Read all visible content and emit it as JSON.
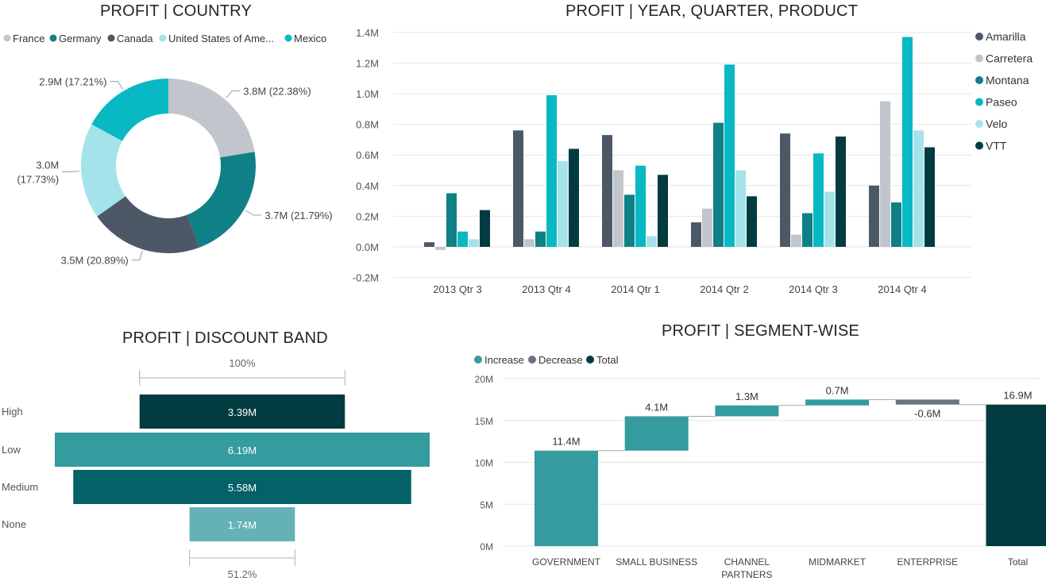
{
  "chart_data": [
    {
      "id": "donut",
      "type": "pie",
      "title": "PROFIT | COUNTRY",
      "legend_position": "top",
      "legend": [
        "France",
        "Germany",
        "Canada",
        "United States of Ame...",
        "Mexico"
      ],
      "slices": [
        {
          "name": "France",
          "value": 3.8,
          "label": "3.8M (22.38%)",
          "color": "#c1c6cc"
        },
        {
          "name": "Germany",
          "value": 3.7,
          "label": "3.7M (21.79%)",
          "color": "#0f8086"
        },
        {
          "name": "Canada",
          "value": 3.55,
          "label": "3.5M (20.89%)",
          "color": "#4d5866"
        },
        {
          "name": "United States of America",
          "value": 3.0,
          "label_lines": [
            "3.0M",
            "(17.73%)"
          ],
          "color": "#a5e3ea"
        },
        {
          "name": "Mexico",
          "value": 2.9,
          "label": "2.9M (17.21%)",
          "color": "#08b8c2"
        }
      ]
    },
    {
      "id": "columns",
      "type": "bar",
      "title": "PROFIT | YEAR, QUARTER, PRODUCT",
      "grid": true,
      "legend_position": "right",
      "ylim": [
        -0.2,
        1.4
      ],
      "yticks": [
        -0.2,
        0,
        0.2,
        0.4,
        0.6,
        0.8,
        1.0,
        1.2,
        1.4
      ],
      "ytick_labels": [
        "-0.2M",
        "0.0M",
        "0.2M",
        "0.4M",
        "0.6M",
        "0.8M",
        "1.0M",
        "1.2M",
        "1.4M"
      ],
      "categories": [
        "2013 Qtr 3",
        "2013 Qtr 4",
        "2014 Qtr 1",
        "2014 Qtr 2",
        "2014 Qtr 3",
        "2014 Qtr 4"
      ],
      "series": [
        {
          "name": "Amarilla",
          "color": "#4d5866",
          "values": [
            0.03,
            0.76,
            0.73,
            0.16,
            0.74,
            0.4
          ]
        },
        {
          "name": "Carretera",
          "color": "#c1c6cc",
          "values": [
            -0.02,
            0.05,
            0.5,
            0.25,
            0.08,
            0.95
          ]
        },
        {
          "name": "Montana",
          "color": "#0f8086",
          "values": [
            0.35,
            0.1,
            0.34,
            0.81,
            0.22,
            0.29
          ]
        },
        {
          "name": "Paseo",
          "color": "#08b8c2",
          "values": [
            0.1,
            0.99,
            0.53,
            1.19,
            0.61,
            1.37
          ]
        },
        {
          "name": "Velo",
          "color": "#a5e3ea",
          "values": [
            0.05,
            0.56,
            0.07,
            0.5,
            0.36,
            0.76
          ]
        },
        {
          "name": "VTT",
          "color": "#023c40",
          "values": [
            0.24,
            0.64,
            0.47,
            0.33,
            0.72,
            0.65
          ]
        }
      ]
    },
    {
      "id": "funnel",
      "type": "bar",
      "title": "PROFIT | DISCOUNT BAND",
      "top_label": "100%",
      "bottom_label": "51.2%",
      "categories": [
        "High",
        "Low",
        "Medium",
        "None"
      ],
      "values": [
        3.39,
        6.19,
        5.58,
        1.74
      ],
      "value_labels": [
        "3.39M",
        "6.19M",
        "5.58M",
        "1.74M"
      ],
      "colors": [
        "#023c40",
        "#349b9f",
        "#036167",
        "#64b2b5"
      ]
    },
    {
      "id": "waterfall",
      "type": "bar",
      "title": "PROFIT | SEGMENT-WISE",
      "legend_position": "top-left",
      "legend": [
        {
          "name": "Increase",
          "color": "#349b9f"
        },
        {
          "name": "Decrease",
          "color": "#6b7480"
        },
        {
          "name": "Total",
          "color": "#023c40"
        }
      ],
      "ylim": [
        0,
        20
      ],
      "yticks": [
        0,
        5,
        10,
        15,
        20
      ],
      "ytick_labels": [
        "0M",
        "5M",
        "10M",
        "15M",
        "20M"
      ],
      "categories": [
        {
          "lines": [
            "GOVERNMENT"
          ]
        },
        {
          "lines": [
            "SMALL BUSINESS"
          ]
        },
        {
          "lines": [
            "CHANNEL",
            "PARTNERS"
          ]
        },
        {
          "lines": [
            "MIDMARKET"
          ]
        },
        {
          "lines": [
            "ENTERPRISE"
          ]
        },
        {
          "lines": [
            "Total"
          ]
        }
      ],
      "steps": [
        {
          "value": 11.4,
          "kind": "Increase",
          "label": "11.4M"
        },
        {
          "value": 4.1,
          "kind": "Increase",
          "label": "4.1M"
        },
        {
          "value": 1.3,
          "kind": "Increase",
          "label": "1.3M"
        },
        {
          "value": 0.7,
          "kind": "Increase",
          "label": "0.7M"
        },
        {
          "value": -0.6,
          "kind": "Decrease",
          "label": "-0.6M"
        },
        {
          "value": 16.9,
          "kind": "Total",
          "label": "16.9M"
        }
      ]
    }
  ]
}
